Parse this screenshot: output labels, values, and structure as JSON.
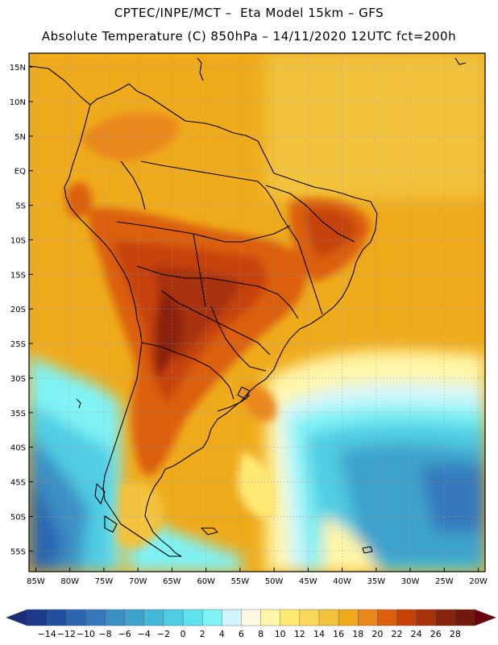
{
  "header": {
    "line1": "CPTEC/INPE/MCT –  Eta Model 15km – GFS",
    "line2": "Absolute Temperature (C) 850hPa – 14/11/2020 12UTC fct=200h"
  },
  "map": {
    "lon_range": [
      -86,
      -19
    ],
    "lat_range": [
      -58,
      17
    ],
    "lat_labels": [
      "15N",
      "10N",
      "5N",
      "EQ",
      "5S",
      "10S",
      "15S",
      "20S",
      "25S",
      "30S",
      "35S",
      "40S",
      "45S",
      "50S",
      "55S"
    ],
    "lat_values": [
      15,
      10,
      5,
      0,
      -5,
      -10,
      -15,
      -20,
      -25,
      -30,
      -35,
      -40,
      -45,
      -50,
      -55
    ],
    "lon_labels": [
      "85W",
      "80W",
      "75W",
      "70W",
      "65W",
      "60W",
      "55W",
      "50W",
      "45W",
      "40W",
      "35W",
      "30W",
      "25W",
      "20W"
    ],
    "lon_values": [
      -85,
      -80,
      -75,
      -70,
      -65,
      -60,
      -55,
      -50,
      -45,
      -40,
      -35,
      -30,
      -25,
      -20
    ]
  },
  "colorbar": {
    "labels": [
      "-14",
      "-12",
      "-10",
      "-8",
      "-6",
      "-4",
      "-2",
      "0",
      "2",
      "4",
      "6",
      "8",
      "10",
      "12",
      "14",
      "16",
      "18",
      "20",
      "22",
      "24",
      "26",
      "28"
    ],
    "colors": [
      "#1c3a8c",
      "#1f4f9e",
      "#2a66b0",
      "#3578bd",
      "#3a8fc4",
      "#3ea3cc",
      "#45b7d8",
      "#4fcde4",
      "#5fe1ee",
      "#7ff3f6",
      "#d2f6fb",
      "#fff8e4",
      "#fff6a8",
      "#ffe873",
      "#f9d75a",
      "#f3c33d",
      "#efab1c",
      "#e9871d",
      "#db5f0c",
      "#c64208",
      "#a7320a",
      "#8a230b",
      "#72180d"
    ],
    "left_end_color": "#1a2e78",
    "right_end_color": "#6a0010"
  }
}
